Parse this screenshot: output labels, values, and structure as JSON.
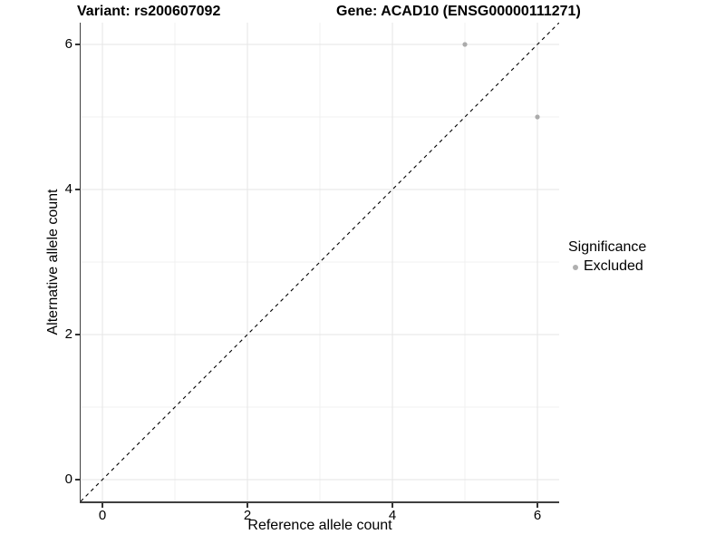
{
  "chart_data": {
    "type": "scatter",
    "title_left": "Variant: rs200607092",
    "title_right": "Gene: ACAD10 (ENSG00000111271)",
    "xlabel": "Reference allele count",
    "ylabel": "Alternative allele count",
    "xlim": [
      -0.3,
      6.3
    ],
    "ylim": [
      -0.3,
      6.3
    ],
    "xticks": [
      0,
      2,
      4,
      6
    ],
    "yticks": [
      0,
      2,
      4,
      6
    ],
    "xminor": [
      1,
      3,
      5
    ],
    "yminor": [
      1,
      3,
      5
    ],
    "grid": "major+minor",
    "series": [
      {
        "name": "Excluded",
        "color": "#ABABAB",
        "marker": "circle",
        "points": [
          {
            "x": 5,
            "y": 6
          },
          {
            "x": 6,
            "y": 5
          }
        ]
      }
    ],
    "reference_line": {
      "equation": "y = x",
      "style": "dashed",
      "color": "#000000",
      "x1": -0.3,
      "y1": -0.3,
      "x2": 6.3,
      "y2": 6.3
    },
    "legend": {
      "title": "Significance",
      "position": "right",
      "entries": [
        {
          "label": "Excluded",
          "color": "#B0B0B0",
          "marker": "circle"
        }
      ]
    }
  },
  "style": {
    "background": "#FFFFFF",
    "axis_line_color": "#404040",
    "tick_color": "#333333",
    "text_color": "#000000",
    "grid_major_color": "#E5E5E5",
    "grid_minor_color": "#F1F1F1",
    "point_radius": 2.6
  }
}
